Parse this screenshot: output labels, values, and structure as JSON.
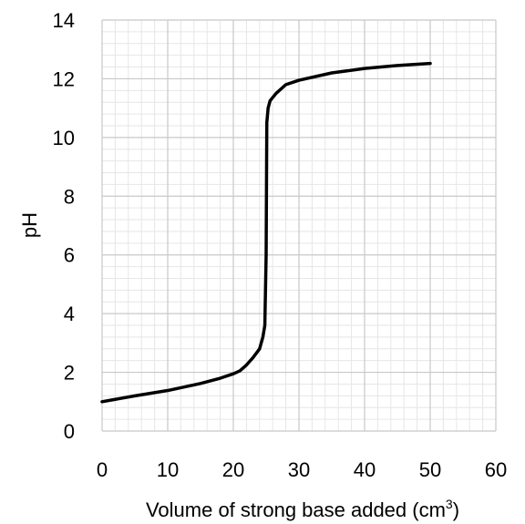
{
  "chart_data": {
    "type": "line",
    "title": "",
    "xlabel": "Volume of strong base added (cm",
    "xlabel_superscript": "3",
    "xlabel_suffix": ")",
    "ylabel": "pH",
    "xlim": [
      0,
      60
    ],
    "ylim": [
      0,
      14
    ],
    "x_major_ticks": [
      0,
      10,
      20,
      30,
      40,
      50,
      60
    ],
    "y_major_ticks": [
      0,
      2,
      4,
      6,
      8,
      10,
      12,
      14
    ],
    "x_tick_labels": [
      "0",
      "10",
      "20",
      "30",
      "40",
      "50",
      "60"
    ],
    "y_tick_labels": [
      "0",
      "2",
      "4",
      "6",
      "8",
      "10",
      "12",
      "14"
    ],
    "grid": true,
    "minor_grid": true,
    "legend": "none",
    "series": [
      {
        "color": "#000000",
        "points": [
          [
            0,
            1.0
          ],
          [
            5,
            1.2
          ],
          [
            10,
            1.38
          ],
          [
            15,
            1.62
          ],
          [
            18,
            1.8
          ],
          [
            20,
            1.95
          ],
          [
            21,
            2.05
          ],
          [
            22,
            2.25
          ],
          [
            23,
            2.5
          ],
          [
            24,
            2.8
          ],
          [
            24.5,
            3.2
          ],
          [
            24.8,
            3.6
          ],
          [
            25,
            6.0
          ],
          [
            25.1,
            10.5
          ],
          [
            25.3,
            11.0
          ],
          [
            25.6,
            11.25
          ],
          [
            26.5,
            11.5
          ],
          [
            28,
            11.8
          ],
          [
            30,
            11.95
          ],
          [
            35,
            12.2
          ],
          [
            40,
            12.35
          ],
          [
            45,
            12.45
          ],
          [
            50,
            12.52
          ]
        ]
      }
    ]
  }
}
